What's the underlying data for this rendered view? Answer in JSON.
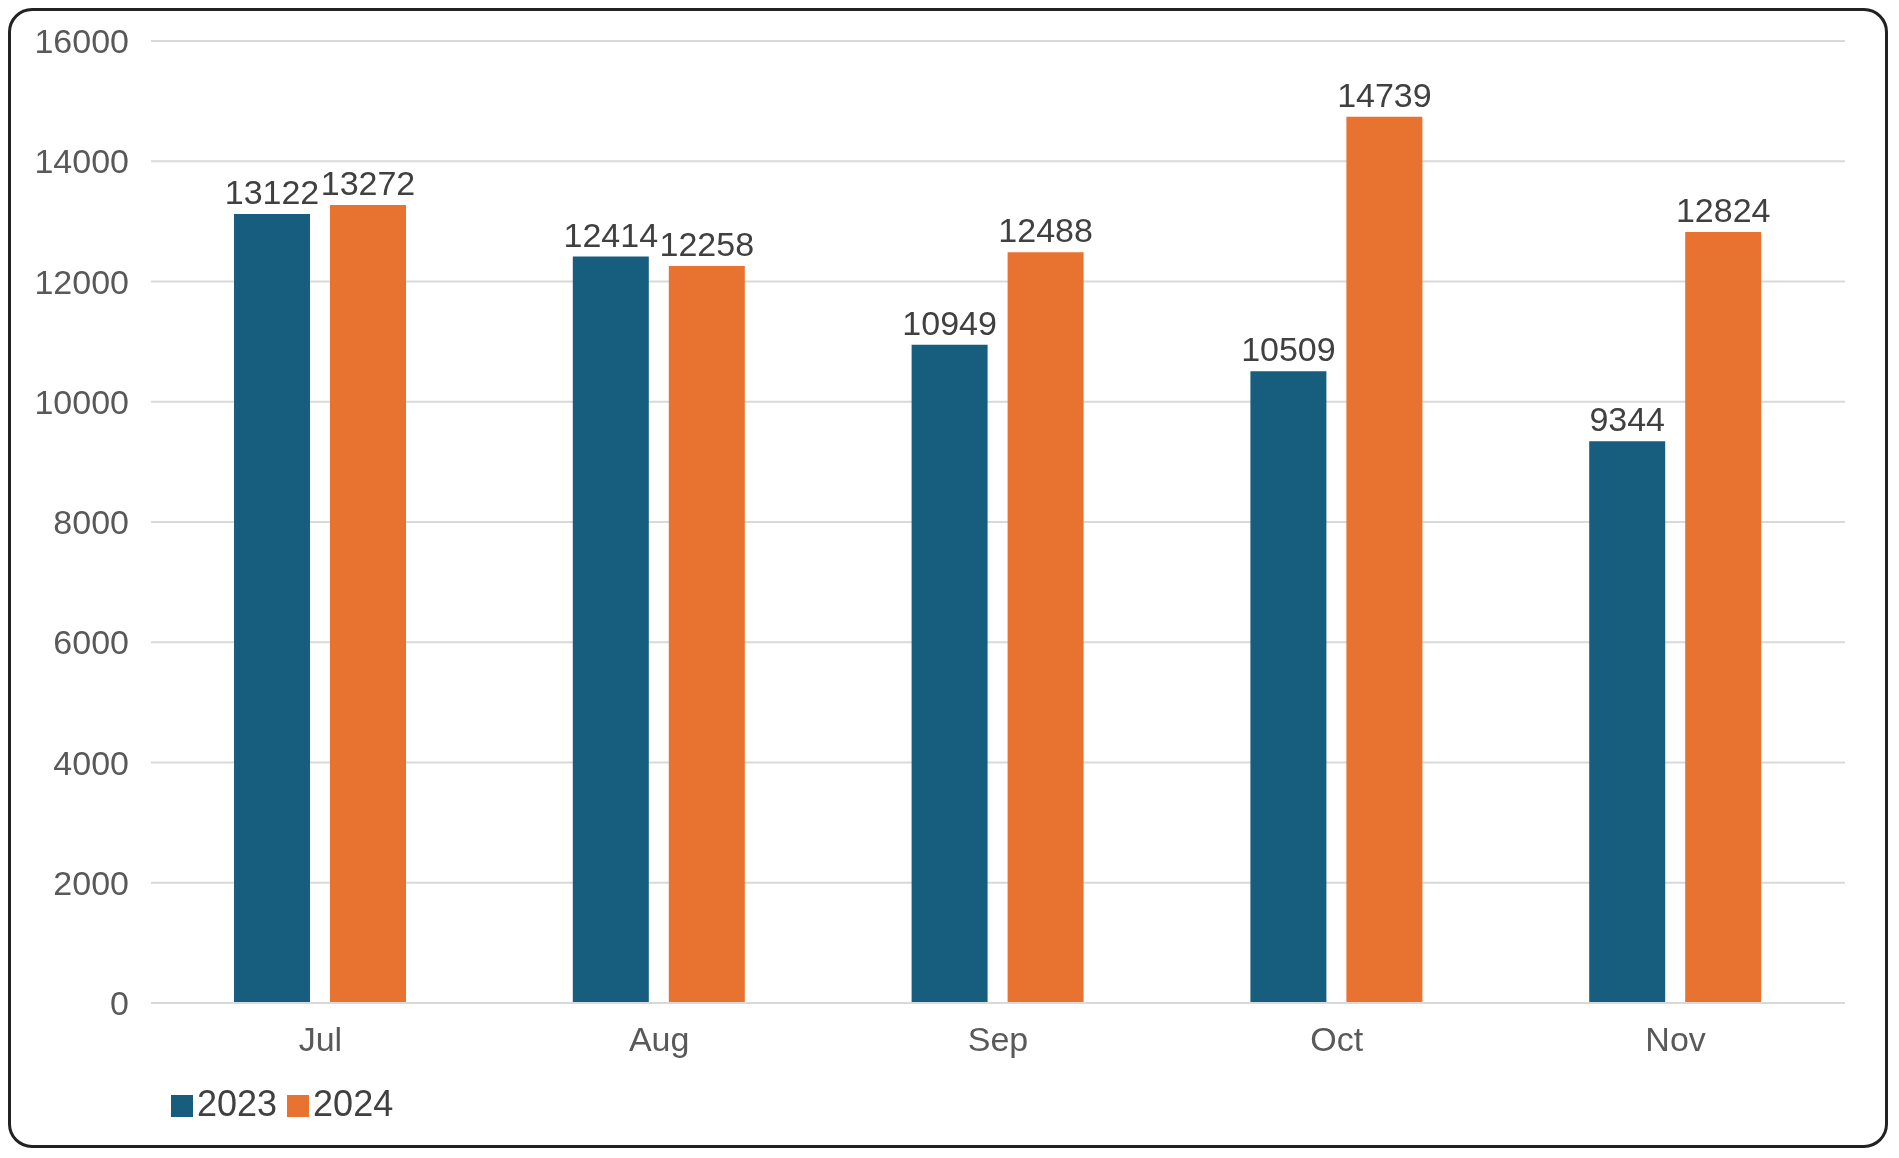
{
  "chart_data": {
    "type": "bar",
    "categories": [
      "Jul",
      "Aug",
      "Sep",
      "Oct",
      "Nov"
    ],
    "series": [
      {
        "name": "2023",
        "color": "#175e7e",
        "values": [
          13122,
          12414,
          10949,
          10509,
          9344
        ]
      },
      {
        "name": "2024",
        "color": "#e8722f",
        "values": [
          13272,
          12258,
          12488,
          14739,
          12824
        ]
      }
    ],
    "ylim": [
      0,
      16000
    ],
    "yticks": [
      0,
      2000,
      4000,
      6000,
      8000,
      10000,
      12000,
      14000,
      16000
    ],
    "grid": "y",
    "data_labels": true,
    "legend": "bottom left"
  }
}
